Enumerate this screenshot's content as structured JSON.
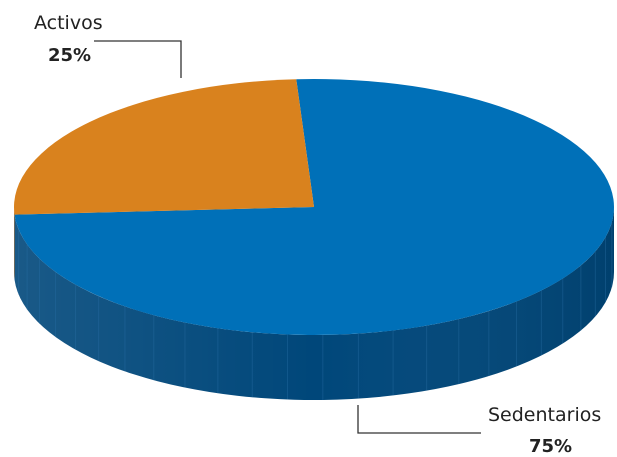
{
  "chart_data": {
    "type": "pie",
    "categories": [
      "Activos",
      "Sedentarios"
    ],
    "values": [
      25,
      75
    ],
    "labels": [
      {
        "name": "Activos",
        "value": "25%"
      },
      {
        "name": "Sedentarios",
        "value": "75%"
      }
    ],
    "colors": {
      "Activos": "#d9821e",
      "Sedentarios": "#0070b8",
      "Sedentarios_side": "#00477a",
      "Activos_side": "#a8621a",
      "leader_line": "#333333"
    },
    "style": "3d-tilted",
    "legend": "none",
    "title": ""
  }
}
